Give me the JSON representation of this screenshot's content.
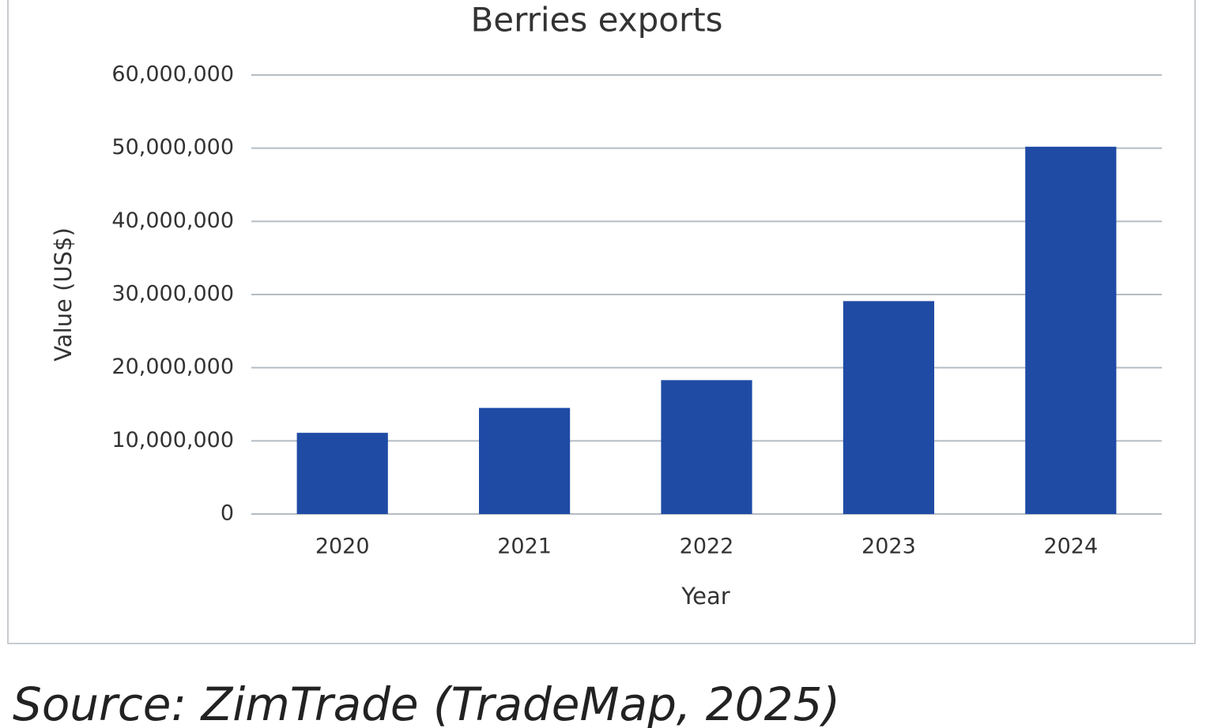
{
  "chart_data": {
    "type": "bar",
    "title": "Berries exports",
    "x_label": "Year",
    "y_label": "Value (US$)",
    "categories": [
      "2020",
      "2021",
      "2022",
      "2023",
      "2024"
    ],
    "values": [
      11100000,
      14500000,
      18300000,
      29100000,
      50200000
    ],
    "color": "#1f4ba5",
    "ylim": [
      0,
      60000000
    ],
    "yticks": [
      0,
      {
        "value": 10000000,
        "label": "10,000,000"
      },
      {
        "value": 20000000,
        "label": "20,000,000"
      },
      {
        "value": 30000000,
        "label": "30,000,000"
      },
      {
        "value": 40000000,
        "label": "40,000,000"
      },
      {
        "value": 50000000,
        "label": "50,000,000"
      },
      {
        "value": 60000000,
        "label": "60,000,000"
      }
    ],
    "grid": true,
    "source": "Source: ZimTrade (TradeMap, 2025)"
  }
}
